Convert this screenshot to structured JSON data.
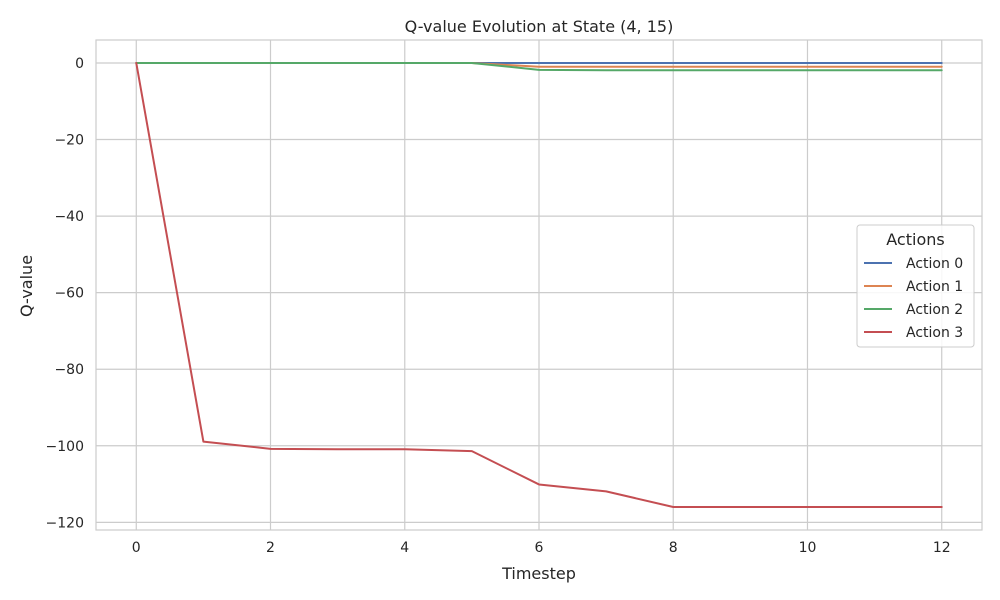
{
  "chart_data": {
    "type": "line",
    "title": "Q-value Evolution at State (4, 15)",
    "xlabel": "Timestep",
    "ylabel": "Q-value",
    "xlim": [
      -0.6,
      12.6
    ],
    "ylim": [
      -122,
      6
    ],
    "xticks": [
      0,
      2,
      4,
      6,
      8,
      10,
      12
    ],
    "yticks": [
      0,
      -20,
      -40,
      -60,
      -80,
      -100,
      -120
    ],
    "xtick_labels": [
      "0",
      "2",
      "4",
      "6",
      "8",
      "10",
      "12"
    ],
    "ytick_labels": [
      "0",
      "−20",
      "−40",
      "−60",
      "−80",
      "−100",
      "−120"
    ],
    "grid": true,
    "legend": {
      "title": "Actions",
      "placement": "center-right"
    },
    "x": [
      0,
      1,
      2,
      3,
      4,
      5,
      6,
      7,
      8,
      9,
      10,
      11,
      12
    ],
    "series": [
      {
        "name": "Action 0",
        "color": "#4c72b0",
        "values": [
          0,
          0,
          0,
          0,
          0,
          0,
          0,
          0,
          0,
          0,
          0,
          0,
          0
        ]
      },
      {
        "name": "Action 1",
        "color": "#dd8452",
        "values": [
          0,
          0,
          0,
          0,
          0,
          0,
          -1,
          -1,
          -1,
          -1,
          -1,
          -1,
          -1
        ]
      },
      {
        "name": "Action 2",
        "color": "#55a868",
        "values": [
          0,
          0,
          0,
          0,
          0,
          0,
          -1.8,
          -1.9,
          -1.9,
          -1.9,
          -1.9,
          -1.9,
          -1.9
        ]
      },
      {
        "name": "Action 3",
        "color": "#c44e52",
        "values": [
          0,
          -98.9,
          -100.8,
          -100.9,
          -100.9,
          -101.4,
          -110.1,
          -111.9,
          -116.0,
          -116.0,
          -116.0,
          -116.0,
          -116.0
        ]
      }
    ]
  }
}
